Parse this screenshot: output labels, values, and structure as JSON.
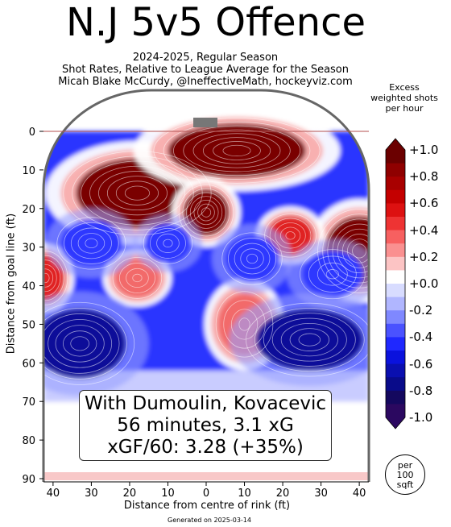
{
  "title": "N.J 5v5 Offence",
  "subtitle_lines": [
    "2024-2025, Regular Season",
    "Shot Rates, Relative to League Average for the Season",
    "Micah Blake McCurdy, @IneffectiveMath, hockeyviz.com"
  ],
  "colorbar": {
    "title_lines": [
      "Excess",
      "weighted shots",
      "per hour"
    ],
    "tick_labels": [
      "+1.0",
      "+0.8",
      "+0.6",
      "+0.4",
      "+0.2",
      "+0.0",
      "-0.2",
      "-0.4",
      "-0.6",
      "-0.8",
      "-1.0"
    ],
    "colors_top_to_bottom": [
      "#6b0000",
      "#8f0000",
      "#a80000",
      "#c40000",
      "#dd1111",
      "#ee3333",
      "#f76060",
      "#fa9090",
      "#fcc4c4",
      "#ffffff",
      "#d8dcff",
      "#b0b6ff",
      "#7f88ff",
      "#4a52ff",
      "#1f28ff",
      "#0a12dd",
      "#0a0fb0",
      "#090b8a",
      "#14085e",
      "#2b0860"
    ]
  },
  "per_unit": [
    "per",
    "100",
    "sqft"
  ],
  "info_box": {
    "line1": "With Dumoulin, Kovacevic",
    "line2": "56 minutes, 3.1 xG",
    "line3": "xGF/60: 3.28 (+35%)"
  },
  "xlabel": "Distance from centre of rink (ft)",
  "ylabel": "Distance from goal line (ft)",
  "generated": "Generated on 2025-03-14",
  "chart_data": {
    "type": "heatmap",
    "title": "N.J 5v5 Offence",
    "xlabel": "Distance from centre of rink (ft)",
    "ylabel": "Distance from goal line (ft)",
    "x_ticks": [
      40,
      30,
      20,
      10,
      0,
      10,
      20,
      30,
      40
    ],
    "y_ticks": [
      0,
      10,
      20,
      30,
      40,
      50,
      60,
      70,
      80,
      90
    ],
    "xlim": [
      -42.5,
      42.5
    ],
    "ylim": [
      0,
      90
    ],
    "value_range": [
      -1.0,
      1.0
    ],
    "hotspots": [
      {
        "x": -18,
        "y": 16,
        "value": 1.0
      },
      {
        "x": 8,
        "y": 5,
        "value": 1.0
      },
      {
        "x": 0,
        "y": 21,
        "value": 0.9
      },
      {
        "x": 40,
        "y": 31,
        "value": 1.0
      },
      {
        "x": 22,
        "y": 27,
        "value": 0.5
      },
      {
        "x": -42,
        "y": 38,
        "value": 0.6
      },
      {
        "x": -18,
        "y": 38,
        "value": 0.4
      },
      {
        "x": 10,
        "y": 50,
        "value": 0.4
      },
      {
        "x": 33,
        "y": 37,
        "value": -0.4
      },
      {
        "x": -33,
        "y": 55,
        "value": -0.9
      },
      {
        "x": 27,
        "y": 54,
        "value": -0.8
      },
      {
        "x": -30,
        "y": 29,
        "value": -0.5
      },
      {
        "x": 12,
        "y": 33,
        "value": -0.5
      },
      {
        "x": -10,
        "y": 29,
        "value": -0.4
      }
    ]
  }
}
